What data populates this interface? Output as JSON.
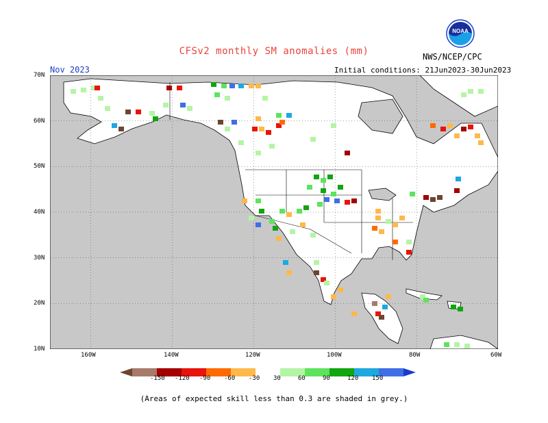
{
  "header": {
    "title": "CFSv2 monthly SM anomalies (mm)",
    "lead_month": "Nov 2023",
    "initial_conditions": "Initial conditions: 21Jun2023-30Jun2023",
    "agency": "NWS/NCEP/CPC",
    "logo_text": "NOAA"
  },
  "map": {
    "projection": "cylindrical equidistant",
    "lon_range": [
      -170,
      -60
    ],
    "lat_range": [
      10,
      70
    ],
    "lat_labels": [
      "70N",
      "60N",
      "50N",
      "40N",
      "30N",
      "20N",
      "10N"
    ],
    "lon_labels": [
      "160W",
      "140W",
      "120W",
      "100W",
      "80W",
      "60W"
    ],
    "grey_meaning": "skill < 0.3",
    "ocean_color": "#c8c8c8",
    "land_color": "#ffffff"
  },
  "legend": {
    "tick_labels": [
      "-150",
      "-120",
      "-90",
      "-60",
      "-30",
      "30",
      "60",
      "90",
      "120",
      "150"
    ],
    "colors": [
      "#6e4530",
      "#a87a6b",
      "#a40000",
      "#e8130a",
      "#ff6a00",
      "#ffb84a",
      "#ffffff",
      "#b3f5a5",
      "#5ee35e",
      "#11a511",
      "#1ea8e0",
      "#3f6fe6",
      "#1a3ccb"
    ]
  },
  "footnote": "(Areas of expected skill less than 0.3 are shaded in grey.)"
}
